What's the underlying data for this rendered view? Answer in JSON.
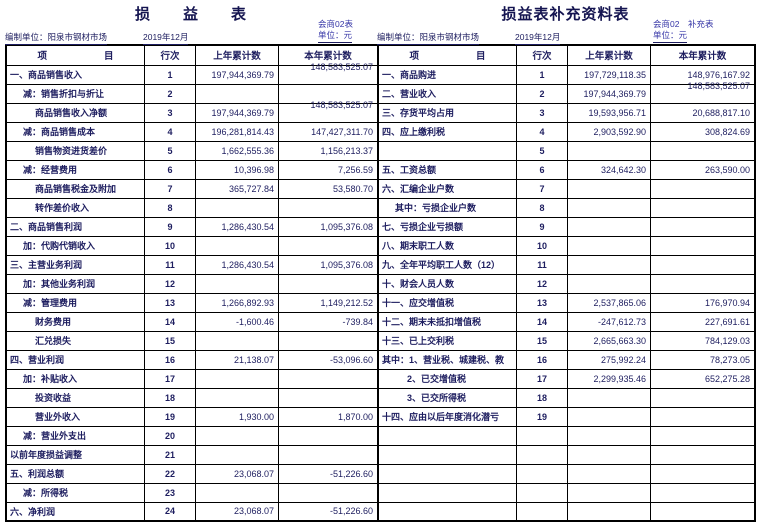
{
  "report_left": {
    "title": "损　　益　　表",
    "prepared_by": "编制单位：阳泉市钢材市场",
    "period": "2019年12月",
    "form_code": "会商02表",
    "unit": "单位：元",
    "columns": {
      "item": "项　　　　　　目",
      "line_no": "行次",
      "prev": "上年累计数",
      "curr": "本年累计数"
    },
    "rows": [
      {
        "label": "一、商品销售收入",
        "indent": 0,
        "line": "1",
        "prev": "197,944,369.79",
        "curr": "148,583,525.07",
        "raised": true
      },
      {
        "label": "减：销售折扣与折让",
        "indent": 1,
        "line": "2",
        "prev": "",
        "curr": ""
      },
      {
        "label": "商品销售收入净额",
        "indent": 2,
        "line": "3",
        "prev": "197,944,369.79",
        "curr": "148,583,525.07",
        "raised": true
      },
      {
        "label": "减：商品销售成本",
        "indent": 1,
        "line": "4",
        "prev": "196,281,814.43",
        "curr": "147,427,311.70"
      },
      {
        "label": "销售物资进货差价",
        "indent": 2,
        "line": "5",
        "prev": "1,662,555.36",
        "curr": "1,156,213.37"
      },
      {
        "label": "减：经营费用",
        "indent": 1,
        "line": "6",
        "prev": "10,396.98",
        "curr": "7,256.59"
      },
      {
        "label": "商品销售税金及附加",
        "indent": 2,
        "line": "7",
        "prev": "365,727.84",
        "curr": "53,580.70"
      },
      {
        "label": "转作差价收入",
        "indent": 2,
        "line": "8",
        "prev": "",
        "curr": ""
      },
      {
        "label": "二、商品销售利润",
        "indent": 0,
        "line": "9",
        "prev": "1,286,430.54",
        "curr": "1,095,376.08"
      },
      {
        "label": "加：代购代销收入",
        "indent": 1,
        "line": "10",
        "prev": "",
        "curr": ""
      },
      {
        "label": "三、主营业务利润",
        "indent": 0,
        "line": "11",
        "prev": "1,286,430.54",
        "curr": "1,095,376.08"
      },
      {
        "label": "加：其他业务利润",
        "indent": 1,
        "line": "12",
        "prev": "",
        "curr": ""
      },
      {
        "label": "减：管理费用",
        "indent": 1,
        "line": "13",
        "prev": "1,266,892.93",
        "curr": "1,149,212.52"
      },
      {
        "label": "财务费用",
        "indent": 2,
        "line": "14",
        "prev": "-1,600.46",
        "curr": "-739.84"
      },
      {
        "label": "汇兑损失",
        "indent": 2,
        "line": "15",
        "prev": "",
        "curr": ""
      },
      {
        "label": "四、营业利润",
        "indent": 0,
        "line": "16",
        "prev": "21,138.07",
        "curr": "-53,096.60"
      },
      {
        "label": "加：补贴收入",
        "indent": 1,
        "line": "17",
        "prev": "",
        "curr": ""
      },
      {
        "label": "投资收益",
        "indent": 2,
        "line": "18",
        "prev": "",
        "curr": ""
      },
      {
        "label": "营业外收入",
        "indent": 2,
        "line": "19",
        "prev": "1,930.00",
        "curr": "1,870.00"
      },
      {
        "label": "减：营业外支出",
        "indent": 1,
        "line": "20",
        "prev": "",
        "curr": ""
      },
      {
        "label": "以前年度损益调整",
        "indent": 0,
        "line": "21",
        "prev": "",
        "curr": ""
      },
      {
        "label": "五、利润总额",
        "indent": 0,
        "line": "22",
        "prev": "23,068.07",
        "curr": "-51,226.60"
      },
      {
        "label": "减：所得税",
        "indent": 1,
        "line": "23",
        "prev": "",
        "curr": ""
      },
      {
        "label": "六、净利润",
        "indent": 0,
        "line": "24",
        "prev": "23,068.07",
        "curr": "-51,226.60"
      }
    ]
  },
  "report_right": {
    "title": "损益表补充资料表",
    "prepared_by": "编制单位：阳泉市钢材市场",
    "period": "2019年12月",
    "form_code": "会商02　补充表",
    "unit": "单位：元",
    "columns": {
      "item": "项　　　　　　目",
      "line_no": "行次",
      "prev": "上年累计数",
      "curr": "本年累计数"
    },
    "rows": [
      {
        "label": "一、商品购进",
        "indent": 0,
        "line": "1",
        "prev": "197,729,118.35",
        "curr": "148,976,167.92"
      },
      {
        "label": "二、营业收入",
        "indent": 0,
        "line": "2",
        "prev": "197,944,369.79",
        "curr": "148,583,525.07",
        "raised": true
      },
      {
        "label": "三、存货平均占用",
        "indent": 0,
        "line": "3",
        "prev": "19,593,956.71",
        "curr": "20,688,817.10"
      },
      {
        "label": "四、应上缴利税",
        "indent": 0,
        "line": "4",
        "prev": "2,903,592.90",
        "curr": "308,824.69"
      },
      {
        "label": "",
        "indent": 0,
        "line": "5",
        "prev": "",
        "curr": ""
      },
      {
        "label": "五、工资总额",
        "indent": 0,
        "line": "6",
        "prev": "324,642.30",
        "curr": "263,590.00"
      },
      {
        "label": "六、汇编企业户数",
        "indent": 0,
        "line": "7",
        "prev": "",
        "curr": ""
      },
      {
        "label": "其中：亏损企业户数",
        "indent": 1,
        "line": "8",
        "prev": "",
        "curr": ""
      },
      {
        "label": "七、亏损企业亏损额",
        "indent": 0,
        "line": "9",
        "prev": "",
        "curr": ""
      },
      {
        "label": "八、期末职工人数",
        "indent": 0,
        "line": "10",
        "prev": "",
        "curr": ""
      },
      {
        "label": "九、全年平均职工人数（12）",
        "indent": 0,
        "line": "11",
        "prev": "",
        "curr": ""
      },
      {
        "label": "十、财会人员人数",
        "indent": 0,
        "line": "12",
        "prev": "",
        "curr": ""
      },
      {
        "label": "十一、应交增值税",
        "indent": 0,
        "line": "13",
        "prev": "2,537,865.06",
        "curr": "176,970.94"
      },
      {
        "label": "十二、期末未抵扣增值税",
        "indent": 0,
        "line": "14",
        "prev": "-247,612.73",
        "curr": "227,691.61"
      },
      {
        "label": "十三、已上交利税",
        "indent": 0,
        "line": "15",
        "prev": "2,665,663.30",
        "curr": "784,129.03"
      },
      {
        "label": "其中：1、营业税、城建税、教",
        "indent": 0,
        "line": "16",
        "prev": "275,992.24",
        "curr": "78,273.05"
      },
      {
        "label": "2、已交增值税",
        "indent": 2,
        "line": "17",
        "prev": "2,299,935.46",
        "curr": "652,275.28"
      },
      {
        "label": "3、已交所得税",
        "indent": 2,
        "line": "18",
        "prev": "",
        "curr": ""
      },
      {
        "label": "十四、应由以后年度消化潜亏",
        "indent": 0,
        "line": "19",
        "prev": "",
        "curr": ""
      },
      {
        "label": "",
        "indent": 0,
        "line": "",
        "prev": "",
        "curr": ""
      },
      {
        "label": "",
        "indent": 0,
        "line": "",
        "prev": "",
        "curr": ""
      },
      {
        "label": "",
        "indent": 0,
        "line": "",
        "prev": "",
        "curr": ""
      },
      {
        "label": "",
        "indent": 0,
        "line": "",
        "prev": "",
        "curr": ""
      },
      {
        "label": "",
        "indent": 0,
        "line": "",
        "prev": "",
        "curr": ""
      }
    ]
  }
}
